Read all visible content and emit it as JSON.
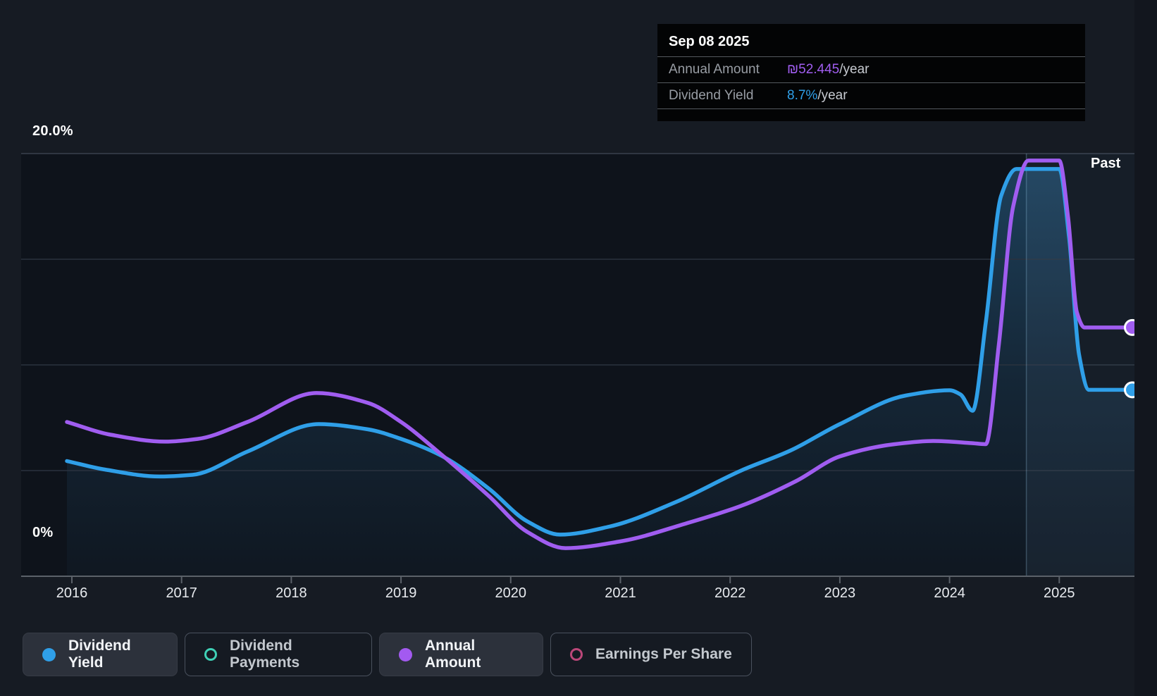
{
  "page": {
    "past_label": "Past"
  },
  "tooltip": {
    "date": "Sep 08 2025",
    "rows": [
      {
        "name": "annual-amount",
        "label": "Annual Amount",
        "value": "₪52.445",
        "suffix": "/year",
        "value_color": "#a05df0"
      },
      {
        "name": "dividend-yield",
        "label": "Dividend Yield",
        "value": "8.7%",
        "suffix": "/year",
        "value_color": "#2f9fe8"
      }
    ]
  },
  "chart_data": {
    "type": "line",
    "x_axis": {
      "ticks": [
        "2016",
        "2017",
        "2018",
        "2019",
        "2020",
        "2021",
        "2022",
        "2023",
        "2024",
        "2025"
      ],
      "range": [
        2015.955,
        2025.69
      ]
    },
    "y_axis": {
      "top_label": "20.0%",
      "zero_label": "0%",
      "unit": "%",
      "range": [
        0,
        20
      ],
      "gridlines_pct": [
        5,
        10,
        15,
        20
      ]
    },
    "past_divider_x": 2024.7,
    "series": [
      {
        "name": "Dividend Yield",
        "color": "#2f9fe8",
        "style": "line-area",
        "current": "8.7%/year",
        "points": [
          [
            2015.955,
            5.45
          ],
          [
            2016.3,
            5.05
          ],
          [
            2016.8,
            4.72
          ],
          [
            2017.1,
            4.8
          ],
          [
            2017.6,
            5.9
          ],
          [
            2018.25,
            7.2
          ],
          [
            2018.7,
            6.95
          ],
          [
            2019.0,
            6.5
          ],
          [
            2019.37,
            5.7
          ],
          [
            2019.8,
            4.15
          ],
          [
            2020.15,
            2.6
          ],
          [
            2020.45,
            1.97
          ],
          [
            2020.9,
            2.35
          ],
          [
            2021.5,
            3.5
          ],
          [
            2022.1,
            5.0
          ],
          [
            2022.55,
            5.95
          ],
          [
            2023.0,
            7.2
          ],
          [
            2023.6,
            8.55
          ],
          [
            2024.0,
            8.8
          ],
          [
            2024.1,
            8.6
          ],
          [
            2024.21,
            7.83
          ],
          [
            2024.33,
            12.0
          ],
          [
            2024.47,
            18.0
          ],
          [
            2024.61,
            19.27
          ],
          [
            2025.0,
            19.27
          ],
          [
            2025.09,
            16.0
          ],
          [
            2025.18,
            10.5
          ],
          [
            2025.27,
            8.82
          ],
          [
            2025.69,
            8.82
          ]
        ]
      },
      {
        "name": "Annual Amount",
        "color": "#a05df0",
        "style": "line",
        "current": "₪52.445/year",
        "points": [
          [
            2015.955,
            7.3
          ],
          [
            2016.35,
            6.7
          ],
          [
            2016.85,
            6.37
          ],
          [
            2017.15,
            6.5
          ],
          [
            2017.6,
            7.3
          ],
          [
            2018.23,
            8.67
          ],
          [
            2018.7,
            8.2
          ],
          [
            2019.0,
            7.3
          ],
          [
            2019.37,
            5.75
          ],
          [
            2019.8,
            3.8
          ],
          [
            2020.15,
            2.1
          ],
          [
            2020.5,
            1.33
          ],
          [
            2021.0,
            1.65
          ],
          [
            2021.6,
            2.5
          ],
          [
            2022.1,
            3.33
          ],
          [
            2022.6,
            4.5
          ],
          [
            2023.0,
            5.67
          ],
          [
            2023.5,
            6.25
          ],
          [
            2023.85,
            6.4
          ],
          [
            2024.2,
            6.3
          ],
          [
            2024.33,
            6.25
          ],
          [
            2024.45,
            11.0
          ],
          [
            2024.58,
            17.5
          ],
          [
            2024.72,
            19.67
          ],
          [
            2025.0,
            19.67
          ],
          [
            2025.08,
            17.0
          ],
          [
            2025.16,
            12.5
          ],
          [
            2025.23,
            11.77
          ],
          [
            2025.69,
            11.77
          ]
        ]
      }
    ]
  },
  "legend": [
    {
      "label": "Dividend Yield",
      "marker": "filled",
      "color": "#2f9fe8",
      "active": true
    },
    {
      "label": "Dividend Payments",
      "marker": "hollow",
      "color": "#3fd0b6",
      "active": false
    },
    {
      "label": "Annual Amount",
      "marker": "filled",
      "color": "#a35af0",
      "active": true
    },
    {
      "label": "Earnings Per Share",
      "marker": "hollow",
      "color": "#bb4779",
      "active": false
    }
  ],
  "colors": {
    "background": "#161b23",
    "plot_background": "#0e131b",
    "right_margin": "#12161e",
    "tooltip_background": "#030405",
    "gridline": "#2a323e",
    "gridline_top": "#39414e",
    "axis_line": "#5b6169",
    "fill_base": "rgba(52,130,184,0.42)",
    "highlight_band": "rgba(123,170,208,0.08)",
    "divider_line": "rgba(150,195,225,0.30)"
  }
}
